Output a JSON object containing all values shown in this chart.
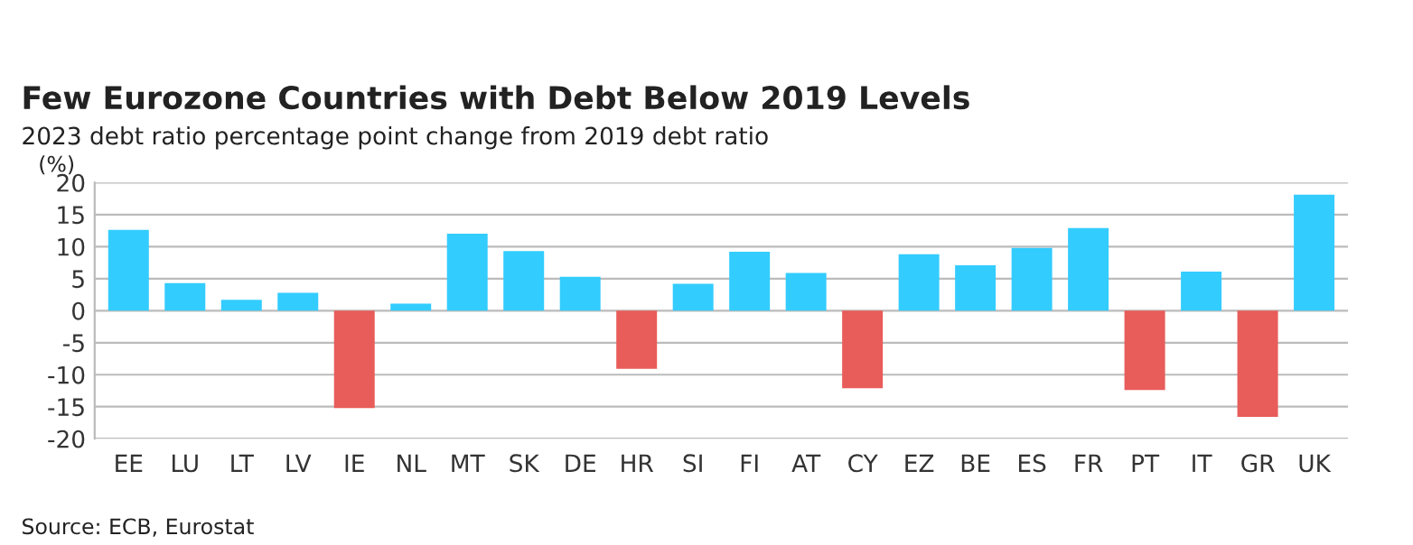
{
  "chart_data": {
    "type": "bar",
    "title": "Few Eurozone Countries with Debt Below 2019 Levels",
    "subtitle": "2023 debt ratio percentage point change from 2019 debt ratio",
    "ylabel": "(%)",
    "categories": [
      "EE",
      "LU",
      "LT",
      "LV",
      "IE",
      "NL",
      "MT",
      "SK",
      "DE",
      "HR",
      "SI",
      "FI",
      "AT",
      "CY",
      "EZ",
      "BE",
      "ES",
      "FR",
      "PT",
      "IT",
      "GR",
      "UK"
    ],
    "values": [
      12.6,
      4.3,
      1.7,
      2.8,
      -15.2,
      1.1,
      12.0,
      9.3,
      5.3,
      -9.1,
      4.2,
      9.2,
      5.9,
      -12.1,
      8.8,
      7.1,
      9.8,
      12.9,
      -12.4,
      6.1,
      -16.6,
      18.1
    ],
    "colors": [
      "#33ccff",
      "#33ccff",
      "#33ccff",
      "#33ccff",
      "#e85c5a",
      "#33ccff",
      "#33ccff",
      "#33ccff",
      "#33ccff",
      "#e85c5a",
      "#33ccff",
      "#33ccff",
      "#33ccff",
      "#e85c5a",
      "#33ccff",
      "#33ccff",
      "#33ccff",
      "#33ccff",
      "#e85c5a",
      "#33ccff",
      "#e85c5a",
      "#33ccff"
    ],
    "ylim": [
      -20,
      20
    ],
    "yticks": [
      -20,
      -15,
      -10,
      -5,
      0,
      5,
      10,
      15,
      20
    ],
    "grid": "y",
    "legend": false,
    "annotations": [
      "Source: ECB, Eurostat"
    ]
  }
}
